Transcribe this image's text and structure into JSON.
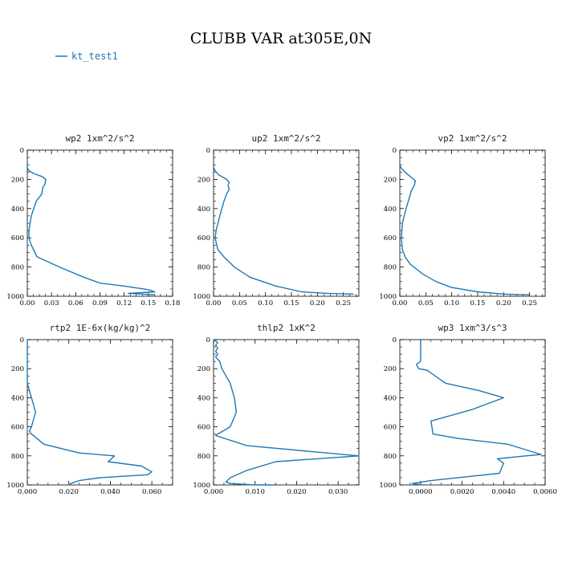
{
  "figure": {
    "title": "CLUBB VAR at305E,0N",
    "legend_label": "kt_test1",
    "line_color": "#1f77b4"
  },
  "chart_data": [
    {
      "type": "line",
      "title": "wp2  1xm^2/s^2",
      "xlim": [
        0,
        0.18
      ],
      "ylim": [
        1000,
        0
      ],
      "xticks": [
        0,
        0.03,
        0.06,
        0.09,
        0.12,
        0.15,
        0.18
      ],
      "xtick_labels": [
        "0.00",
        "0.03",
        "0.06",
        "0.09",
        "0.12",
        "0.15",
        "0.18"
      ],
      "yticks": [
        0,
        200,
        400,
        600,
        800,
        1000
      ],
      "ytick_labels": [
        "0",
        "200",
        "400",
        "600",
        "800",
        "1000"
      ],
      "series": [
        {
          "x": [
            0.0,
            0.0,
            0.002,
            0.008,
            0.018,
            0.023,
            0.022,
            0.019,
            0.018,
            0.011,
            0.005,
            0.002,
            0.002,
            0.005,
            0.012,
            0.04,
            0.07,
            0.09,
            0.12,
            0.15,
            0.158,
            0.125,
            0.158
          ],
          "y": [
            100,
            120,
            140,
            160,
            180,
            200,
            230,
            260,
            300,
            350,
            450,
            550,
            600,
            650,
            730,
            800,
            870,
            910,
            930,
            955,
            970,
            980,
            990
          ]
        }
      ]
    },
    {
      "type": "line",
      "title": "up2  1xm^2/s^2",
      "xlim": [
        0,
        0.28
      ],
      "ylim": [
        1000,
        0
      ],
      "xticks": [
        0,
        0.05,
        0.1,
        0.15,
        0.2,
        0.25
      ],
      "xtick_labels": [
        "0.00",
        "0.05",
        "0.10",
        "0.15",
        "0.20",
        "0.25"
      ],
      "yticks": [
        0,
        200,
        400,
        600,
        800,
        1000
      ],
      "ytick_labels": [
        "0",
        "200",
        "400",
        "600",
        "800",
        "1000"
      ],
      "series": [
        {
          "x": [
            0.0,
            0.0,
            0.003,
            0.01,
            0.025,
            0.03,
            0.028,
            0.03,
            0.025,
            0.02,
            0.012,
            0.005,
            0.003,
            0.008,
            0.02,
            0.04,
            0.07,
            0.12,
            0.17,
            0.22,
            0.27
          ],
          "y": [
            100,
            120,
            140,
            170,
            200,
            220,
            240,
            270,
            300,
            350,
            450,
            550,
            600,
            680,
            730,
            800,
            870,
            930,
            970,
            980,
            985
          ]
        }
      ]
    },
    {
      "type": "line",
      "title": "vp2  1xm^2/s^2",
      "xlim": [
        0,
        0.28
      ],
      "ylim": [
        1000,
        0
      ],
      "xticks": [
        0,
        0.05,
        0.1,
        0.15,
        0.2,
        0.25
      ],
      "xtick_labels": [
        "0.00",
        "0.05",
        "0.10",
        "0.15",
        "0.20",
        "0.25"
      ],
      "yticks": [
        0,
        200,
        400,
        600,
        800,
        1000
      ],
      "ytick_labels": [
        "0",
        "200",
        "400",
        "600",
        "800",
        "1000"
      ],
      "series": [
        {
          "x": [
            0.0,
            0.002,
            0.01,
            0.02,
            0.03,
            0.028,
            0.022,
            0.018,
            0.012,
            0.005,
            0.003,
            0.005,
            0.01,
            0.02,
            0.045,
            0.07,
            0.1,
            0.15,
            0.2,
            0.25
          ],
          "y": [
            100,
            120,
            150,
            180,
            210,
            240,
            280,
            330,
            400,
            500,
            600,
            680,
            730,
            780,
            850,
            900,
            940,
            970,
            985,
            990
          ]
        }
      ]
    },
    {
      "type": "line",
      "title": "rtp2  1E-6x(kg/kg)^2",
      "xlim": [
        0,
        0.07
      ],
      "ylim": [
        1000,
        0
      ],
      "xticks": [
        0,
        0.02,
        0.04,
        0.06
      ],
      "xtick_labels": [
        "0.000",
        "0.020",
        "0.040",
        "0.060"
      ],
      "yticks": [
        0,
        200,
        400,
        600,
        800,
        1000
      ],
      "ytick_labels": [
        "0",
        "200",
        "400",
        "600",
        "800",
        "1000"
      ],
      "series": [
        {
          "x": [
            0.0,
            0.0,
            0.001,
            0.002,
            0.003,
            0.004,
            0.003,
            0.002,
            0.001,
            0.002,
            0.008,
            0.025,
            0.042,
            0.039,
            0.055,
            0.06,
            0.058,
            0.035,
            0.025,
            0.021,
            0.02
          ],
          "y": [
            0,
            300,
            350,
            400,
            450,
            500,
            550,
            600,
            630,
            650,
            720,
            780,
            800,
            840,
            870,
            910,
            930,
            950,
            970,
            990,
            1000
          ]
        }
      ]
    },
    {
      "type": "line",
      "title": "thlp2  1xK^2",
      "xlim": [
        0,
        0.035
      ],
      "ylim": [
        1000,
        0
      ],
      "xticks": [
        0,
        0.01,
        0.02,
        0.03
      ],
      "xtick_labels": [
        "0.000",
        "0.010",
        "0.020",
        "0.030"
      ],
      "yticks": [
        0,
        200,
        400,
        600,
        800,
        1000
      ],
      "ytick_labels": [
        "0",
        "200",
        "400",
        "600",
        "800",
        "1000"
      ],
      "series": [
        {
          "x": [
            0.0,
            0.001,
            0.0005,
            0.001,
            0.0005,
            0.001,
            0.0005,
            0.0015,
            0.002,
            0.004,
            0.005,
            0.0055,
            0.004,
            0.001,
            0.0005,
            0.008,
            0.035,
            0.015,
            0.008,
            0.004,
            0.003,
            0.004,
            0.01,
            0.015
          ],
          "y": [
            0,
            20,
            40,
            60,
            80,
            100,
            120,
            150,
            200,
            300,
            400,
            500,
            600,
            650,
            660,
            730,
            800,
            840,
            900,
            950,
            980,
            990,
            1000,
            1000
          ]
        }
      ]
    },
    {
      "type": "line",
      "title": "wp3  1xm^3/s^3",
      "xlim": [
        -0.001,
        0.006
      ],
      "ylim": [
        1000,
        0
      ],
      "xticks": [
        0,
        0.002,
        0.004,
        0.006
      ],
      "xtick_labels": [
        "0.0000",
        "0.0020",
        "0.0040",
        "0.0060"
      ],
      "yticks": [
        0,
        200,
        400,
        600,
        800,
        1000
      ],
      "ytick_labels": [
        "0",
        "200",
        "400",
        "600",
        "800",
        "1000"
      ],
      "series": [
        {
          "x": [
            0.0,
            0.0,
            0.0,
            -0.0002,
            -0.0001,
            0.0003,
            0.0005,
            0.0012,
            0.0028,
            0.004,
            0.0025,
            0.0005,
            0.0006,
            0.0018,
            0.0042,
            0.0058,
            0.0037,
            0.004,
            0.0038,
            0.0025,
            0.0005,
            -0.0004,
            0.0001
          ],
          "y": [
            0,
            100,
            150,
            170,
            200,
            210,
            230,
            300,
            350,
            400,
            480,
            560,
            650,
            680,
            720,
            790,
            820,
            850,
            920,
            940,
            970,
            990,
            1000
          ]
        }
      ]
    }
  ]
}
